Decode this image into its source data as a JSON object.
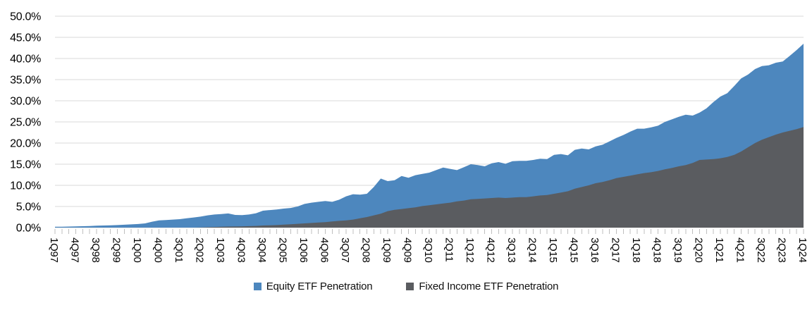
{
  "chart_data": {
    "type": "area",
    "mode": "overlapping",
    "title": "",
    "legend_position": "bottom",
    "grid": true,
    "style": {
      "background": "#FFFFFF",
      "grid_color": "#D9D9D9",
      "tick_color": "#BFBFBF",
      "text_color": "#000000"
    },
    "y_axis": {
      "min": 0,
      "max": 50,
      "step": 5,
      "tick_labels": [
        "0.0%",
        "5.0%",
        "10.0%",
        "15.0%",
        "20.0%",
        "25.0%",
        "30.0%",
        "35.0%",
        "40.0%",
        "45.0%",
        "50.0%"
      ]
    },
    "x_axis": {
      "points_per_label": 3,
      "tick_labels": [
        "1Q97",
        "4Q97",
        "3Q98",
        "2Q99",
        "1Q00",
        "4Q00",
        "3Q01",
        "2Q02",
        "1Q03",
        "4Q03",
        "3Q04",
        "2Q05",
        "1Q06",
        "4Q06",
        "3Q07",
        "2Q08",
        "1Q09",
        "4Q09",
        "3Q10",
        "2Q11",
        "1Q12",
        "4Q12",
        "3Q13",
        "2Q14",
        "1Q15",
        "4Q15",
        "3Q16",
        "2Q17",
        "1Q18",
        "4Q18",
        "3Q19",
        "2Q20",
        "1Q21",
        "4Q21",
        "3Q22",
        "2Q23",
        "1Q24"
      ]
    },
    "series": [
      {
        "name": "Equity ETF Penetration",
        "color": "#4D87BE",
        "values": [
          0.2,
          0.22,
          0.25,
          0.3,
          0.33,
          0.38,
          0.45,
          0.5,
          0.55,
          0.6,
          0.68,
          0.76,
          0.85,
          1.0,
          1.4,
          1.7,
          1.8,
          1.9,
          2.0,
          2.2,
          2.4,
          2.6,
          2.9,
          3.1,
          3.2,
          3.35,
          3.0,
          2.95,
          3.1,
          3.4,
          4.0,
          4.15,
          4.3,
          4.5,
          4.65,
          5.0,
          5.6,
          5.9,
          6.1,
          6.3,
          6.1,
          6.6,
          7.4,
          7.9,
          7.8,
          8.0,
          9.6,
          11.6,
          11.0,
          11.2,
          12.2,
          11.8,
          12.4,
          12.7,
          13.0,
          13.6,
          14.2,
          13.9,
          13.6,
          14.3,
          15.0,
          14.8,
          14.5,
          15.2,
          15.5,
          15.1,
          15.7,
          15.8,
          15.8,
          16.0,
          16.3,
          16.2,
          17.2,
          17.4,
          17.1,
          18.4,
          18.7,
          18.5,
          19.2,
          19.6,
          20.4,
          21.2,
          21.9,
          22.7,
          23.4,
          23.4,
          23.7,
          24.1,
          25.0,
          25.6,
          26.2,
          26.7,
          26.5,
          27.2,
          28.2,
          29.7,
          31.0,
          31.8,
          33.5,
          35.3,
          36.2,
          37.5,
          38.2,
          38.4,
          39.0,
          39.3,
          40.6,
          42.0,
          43.5
        ]
      },
      {
        "name": "Fixed Income ETF Penetration",
        "color": "#5A5C60",
        "values": [
          0,
          0,
          0,
          0,
          0,
          0,
          0,
          0,
          0,
          0,
          0,
          0,
          0,
          0,
          0,
          0,
          0,
          0,
          0,
          0,
          0,
          0.05,
          0.1,
          0.15,
          0.2,
          0.25,
          0.27,
          0.3,
          0.35,
          0.4,
          0.5,
          0.55,
          0.6,
          0.7,
          0.8,
          0.9,
          1.0,
          1.1,
          1.2,
          1.3,
          1.45,
          1.6,
          1.7,
          1.9,
          2.2,
          2.5,
          2.9,
          3.3,
          3.9,
          4.2,
          4.4,
          4.6,
          4.8,
          5.1,
          5.3,
          5.5,
          5.7,
          5.9,
          6.2,
          6.4,
          6.7,
          6.8,
          6.9,
          7.0,
          7.1,
          7.0,
          7.1,
          7.2,
          7.2,
          7.4,
          7.6,
          7.7,
          8.0,
          8.3,
          8.6,
          9.2,
          9.6,
          10.0,
          10.5,
          10.8,
          11.2,
          11.7,
          12.0,
          12.3,
          12.6,
          12.9,
          13.1,
          13.4,
          13.8,
          14.1,
          14.5,
          14.8,
          15.3,
          16.0,
          16.1,
          16.2,
          16.4,
          16.7,
          17.2,
          18.0,
          19.0,
          20.0,
          20.8,
          21.4,
          22.0,
          22.5,
          22.9,
          23.3,
          23.8
        ]
      }
    ]
  }
}
